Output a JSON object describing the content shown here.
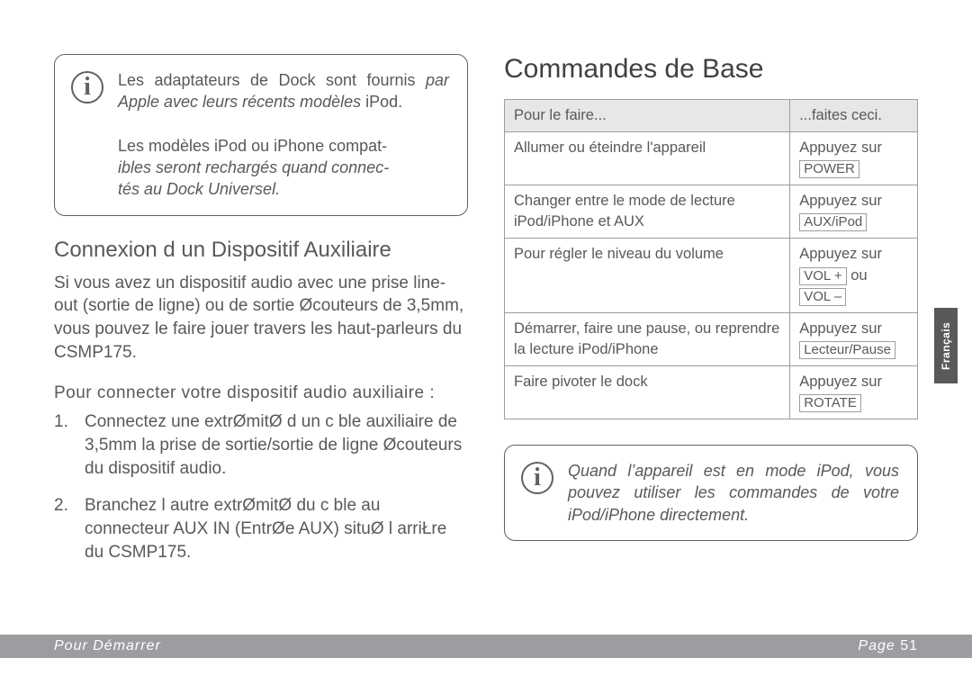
{
  "left": {
    "info": {
      "line1a": "Les adaptateurs de Dock sont fournis ",
      "line1b_italic": "par Apple avec leurs récents modèles ",
      "line1c": "iPod.",
      "line2a": "Les modèles iPod ou iPhone compat-",
      "line2b_italic": "ibles seront rechargés quand connec-",
      "line2c_italic": "tés au Dock Universel."
    },
    "h2": "Connexion d un Dispositif Auxiliaire",
    "p1": "Si vous avez un dispositif audio avec une prise line-out (sortie de ligne) ou de sortie Øcouteurs de 3,5mm, vous pouvez le faire jouer   travers les haut-parleurs du CSMP175.",
    "sub": "Pour connecter votre dispositif audio auxiliaire :",
    "step1": "Connectez une extrØmitØ d un c ble auxiliaire de 3,5mm   la prise de sortie/sortie de ligne Øcouteurs du dispositif audio.",
    "step2": "Branchez l autre extrØmitØ du c ble au connecteur AUX IN (EntrØe AUX) situØ   l arriŁre du CSMP175."
  },
  "right": {
    "title": "Commandes de Base",
    "table": {
      "head": [
        "Pour le faire...",
        "...faites ceci."
      ],
      "rows": [
        {
          "c1": "Allumer ou éteindre l'appareil",
          "c2_pre": "Appuyez sur",
          "c2_btn": "POWER"
        },
        {
          "c1": "Changer entre le mode de lecture iPod/iPhone et AUX",
          "c2_pre": "Appuyez sur",
          "c2_btn": "AUX/iPod"
        },
        {
          "c1": "Pour régler le niveau du volume",
          "c2_pre": "Appuyez sur",
          "c2_btn": "VOL +",
          "c2_mid": " ou ",
          "c2_btn2": "VOL –"
        },
        {
          "c1": "Démarrer, faire une pause, ou reprendre la lecture iPod/iPhone",
          "c2_pre": "Appuyez sur",
          "c2_btn": "Lecteur/Pause"
        },
        {
          "c1": "Faire pivoter le dock",
          "c2_pre": "Appuyez sur",
          "c2_btn": "ROTATE"
        }
      ]
    },
    "info_italic": "Quand l’appareil est en mode iPod, vous pouvez utiliser les commandes de votre iPod/iPhone directement."
  },
  "lang_tab": "Français",
  "footer": {
    "left": "Pour Démarrer",
    "right_label": "Page ",
    "right_num": "51"
  },
  "colors": {
    "text": "#58595b",
    "border": "#606164",
    "table_border": "#9b9da0",
    "footer_bg": "#9b9da0",
    "tab_bg": "#58595b"
  }
}
